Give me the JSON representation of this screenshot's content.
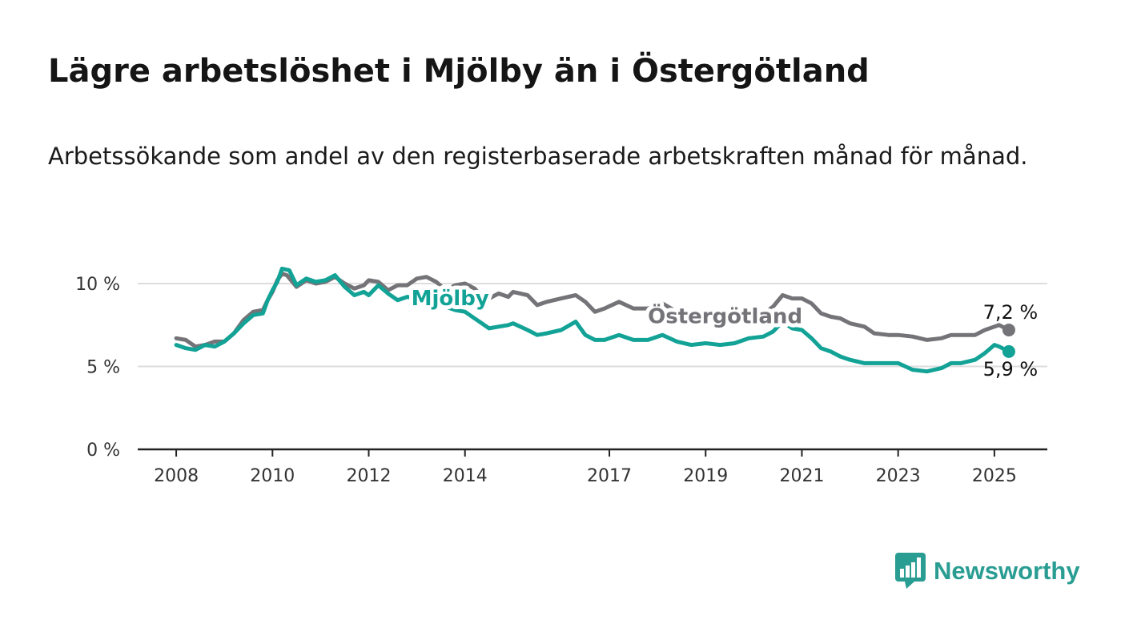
{
  "header": {
    "title": "Lägre arbetslöshet i Mjölby än i Östergötland",
    "subtitle": "Arbetssökande som andel av den registerbaserade arbetskraften månad för månad."
  },
  "brand": {
    "name": "Newsworthy",
    "color": "#2a9d93",
    "icon": "bar-chart-speech-bubble-icon"
  },
  "colors": {
    "mjolby": "#12a296",
    "ostergotland": "#747378",
    "grid": "#dddddd",
    "axis": "#222222"
  },
  "chart_data": {
    "type": "line",
    "title": "Lägre arbetslöshet i Mjölby än i Östergötland",
    "subtitle": "Arbetssökande som andel av den registerbaserade arbetskraften månad för månad.",
    "xlabel": "",
    "ylabel": "",
    "xlim": [
      2007.2,
      2026.1
    ],
    "ylim": [
      0,
      10
    ],
    "x_ticks": [
      2008,
      2010,
      2012,
      2014,
      2017,
      2019,
      2021,
      2023,
      2025
    ],
    "y_ticks": [
      {
        "value": 0,
        "label": "0 %"
      },
      {
        "value": 5,
        "label": "5 %"
      },
      {
        "value": 10,
        "label": "10 %"
      }
    ],
    "grid": true,
    "series": [
      {
        "name": "Östergötland",
        "color": "#747378",
        "end_label": "7,2 %",
        "points": [
          [
            2008.0,
            6.7
          ],
          [
            2008.2,
            6.6
          ],
          [
            2008.4,
            6.2
          ],
          [
            2008.6,
            6.3
          ],
          [
            2008.8,
            6.5
          ],
          [
            2009.0,
            6.5
          ],
          [
            2009.2,
            7.0
          ],
          [
            2009.4,
            7.8
          ],
          [
            2009.6,
            8.3
          ],
          [
            2009.8,
            8.4
          ],
          [
            2009.9,
            9.0
          ],
          [
            2010.0,
            9.5
          ],
          [
            2010.1,
            10.2
          ],
          [
            2010.2,
            10.6
          ],
          [
            2010.3,
            10.5
          ],
          [
            2010.5,
            9.8
          ],
          [
            2010.7,
            10.2
          ],
          [
            2010.9,
            10.0
          ],
          [
            2011.1,
            10.1
          ],
          [
            2011.3,
            10.4
          ],
          [
            2011.5,
            10.0
          ],
          [
            2011.7,
            9.7
          ],
          [
            2011.9,
            9.9
          ],
          [
            2012.0,
            10.2
          ],
          [
            2012.2,
            10.1
          ],
          [
            2012.4,
            9.6
          ],
          [
            2012.6,
            9.9
          ],
          [
            2012.8,
            9.9
          ],
          [
            2013.0,
            10.3
          ],
          [
            2013.2,
            10.4
          ],
          [
            2013.4,
            10.1
          ],
          [
            2013.6,
            9.6
          ],
          [
            2013.8,
            9.9
          ],
          [
            2014.0,
            10.0
          ],
          [
            2014.2,
            9.7
          ],
          [
            2014.35,
            9.2
          ],
          [
            2014.5,
            9.1
          ],
          [
            2014.7,
            9.4
          ],
          [
            2014.9,
            9.2
          ],
          [
            2015.0,
            9.5
          ],
          [
            2015.3,
            9.3
          ],
          [
            2015.5,
            8.7
          ],
          [
            2015.7,
            8.9
          ],
          [
            2016.0,
            9.1
          ],
          [
            2016.3,
            9.3
          ],
          [
            2016.5,
            8.9
          ],
          [
            2016.7,
            8.3
          ],
          [
            2016.9,
            8.5
          ],
          [
            2017.2,
            8.9
          ],
          [
            2017.5,
            8.5
          ],
          [
            2017.8,
            8.5
          ],
          [
            2018.1,
            8.8
          ],
          [
            2018.4,
            8.3
          ],
          [
            2018.7,
            8.0
          ],
          [
            2019.0,
            8.1
          ],
          [
            2019.3,
            8.2
          ],
          [
            2019.6,
            8.4
          ],
          [
            2019.9,
            8.2
          ],
          [
            2020.2,
            8.2
          ],
          [
            2020.4,
            8.6
          ],
          [
            2020.6,
            9.3
          ],
          [
            2020.8,
            9.1
          ],
          [
            2021.0,
            9.1
          ],
          [
            2021.2,
            8.8
          ],
          [
            2021.4,
            8.2
          ],
          [
            2021.6,
            8.0
          ],
          [
            2021.8,
            7.9
          ],
          [
            2022.0,
            7.6
          ],
          [
            2022.3,
            7.4
          ],
          [
            2022.5,
            7.0
          ],
          [
            2022.8,
            6.9
          ],
          [
            2023.0,
            6.9
          ],
          [
            2023.3,
            6.8
          ],
          [
            2023.6,
            6.6
          ],
          [
            2023.9,
            6.7
          ],
          [
            2024.1,
            6.9
          ],
          [
            2024.3,
            6.9
          ],
          [
            2024.6,
            6.9
          ],
          [
            2024.8,
            7.2
          ],
          [
            2025.0,
            7.4
          ],
          [
            2025.1,
            7.5
          ],
          [
            2025.3,
            7.2
          ]
        ]
      },
      {
        "name": "Mjölby",
        "color": "#12a296",
        "end_label": "5,9 %",
        "points": [
          [
            2008.0,
            6.3
          ],
          [
            2008.2,
            6.1
          ],
          [
            2008.4,
            6.0
          ],
          [
            2008.6,
            6.3
          ],
          [
            2008.8,
            6.2
          ],
          [
            2009.0,
            6.5
          ],
          [
            2009.2,
            7.0
          ],
          [
            2009.4,
            7.6
          ],
          [
            2009.6,
            8.1
          ],
          [
            2009.8,
            8.2
          ],
          [
            2009.9,
            9.0
          ],
          [
            2010.0,
            9.6
          ],
          [
            2010.1,
            10.1
          ],
          [
            2010.2,
            10.9
          ],
          [
            2010.35,
            10.8
          ],
          [
            2010.5,
            9.9
          ],
          [
            2010.7,
            10.3
          ],
          [
            2010.9,
            10.1
          ],
          [
            2011.1,
            10.2
          ],
          [
            2011.3,
            10.5
          ],
          [
            2011.5,
            9.8
          ],
          [
            2011.7,
            9.3
          ],
          [
            2011.9,
            9.5
          ],
          [
            2012.0,
            9.3
          ],
          [
            2012.2,
            9.9
          ],
          [
            2012.4,
            9.4
          ],
          [
            2012.6,
            9.0
          ],
          [
            2012.8,
            9.2
          ],
          [
            2013.0,
            9.1
          ],
          [
            2013.2,
            9.3
          ],
          [
            2013.4,
            8.9
          ],
          [
            2013.6,
            8.6
          ],
          [
            2013.8,
            8.4
          ],
          [
            2014.0,
            8.3
          ],
          [
            2014.2,
            7.9
          ],
          [
            2014.35,
            7.6
          ],
          [
            2014.5,
            7.3
          ],
          [
            2014.7,
            7.4
          ],
          [
            2014.9,
            7.5
          ],
          [
            2015.0,
            7.6
          ],
          [
            2015.3,
            7.2
          ],
          [
            2015.5,
            6.9
          ],
          [
            2015.7,
            7.0
          ],
          [
            2016.0,
            7.2
          ],
          [
            2016.3,
            7.7
          ],
          [
            2016.5,
            6.9
          ],
          [
            2016.7,
            6.6
          ],
          [
            2016.9,
            6.6
          ],
          [
            2017.2,
            6.9
          ],
          [
            2017.5,
            6.6
          ],
          [
            2017.8,
            6.6
          ],
          [
            2018.1,
            6.9
          ],
          [
            2018.4,
            6.5
          ],
          [
            2018.7,
            6.3
          ],
          [
            2019.0,
            6.4
          ],
          [
            2019.3,
            6.3
          ],
          [
            2019.6,
            6.4
          ],
          [
            2019.9,
            6.7
          ],
          [
            2020.2,
            6.8
          ],
          [
            2020.4,
            7.1
          ],
          [
            2020.6,
            7.7
          ],
          [
            2020.8,
            7.3
          ],
          [
            2021.0,
            7.2
          ],
          [
            2021.2,
            6.7
          ],
          [
            2021.4,
            6.1
          ],
          [
            2021.6,
            5.9
          ],
          [
            2021.8,
            5.6
          ],
          [
            2022.0,
            5.4
          ],
          [
            2022.3,
            5.2
          ],
          [
            2022.5,
            5.2
          ],
          [
            2022.8,
            5.2
          ],
          [
            2023.0,
            5.2
          ],
          [
            2023.3,
            4.8
          ],
          [
            2023.6,
            4.7
          ],
          [
            2023.9,
            4.9
          ],
          [
            2024.1,
            5.2
          ],
          [
            2024.3,
            5.2
          ],
          [
            2024.6,
            5.4
          ],
          [
            2024.8,
            5.8
          ],
          [
            2025.0,
            6.3
          ],
          [
            2025.1,
            6.2
          ],
          [
            2025.3,
            5.9
          ]
        ]
      }
    ]
  }
}
